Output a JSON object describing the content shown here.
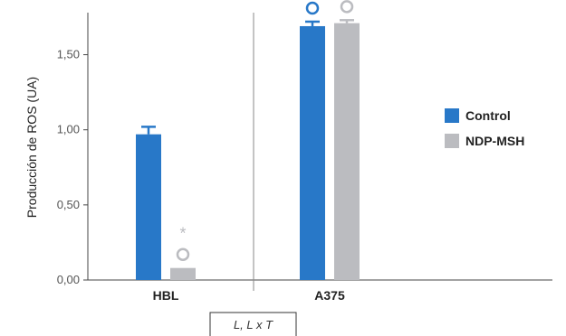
{
  "chart_data": {
    "type": "bar",
    "categories": [
      "HBL",
      "A375"
    ],
    "series": [
      {
        "name": "Control",
        "color": "#2878c8",
        "values": [
          0.97,
          1.69
        ],
        "errors": [
          0.05,
          0.03
        ],
        "markers": [
          "",
          "circle"
        ]
      },
      {
        "name": "NDP-MSH",
        "color": "#bbbcc0",
        "values": [
          0.08,
          1.71
        ],
        "errors": [
          0,
          0.02
        ],
        "markers": [
          "circle",
          "circle"
        ],
        "asterisks": [
          "*",
          ""
        ]
      }
    ],
    "ylabel": "Producción de ROS (UA)",
    "xlabel": "",
    "ylim": [
      0,
      1.78
    ],
    "yticks": [
      {
        "value": 0,
        "label": "0,00"
      },
      {
        "value": 0.5,
        "label": "0,50"
      },
      {
        "value": 1.0,
        "label": "1,00"
      },
      {
        "value": 1.5,
        "label": "1,50"
      }
    ],
    "legend_position": "right",
    "grid": false,
    "note": "L, L x T"
  }
}
